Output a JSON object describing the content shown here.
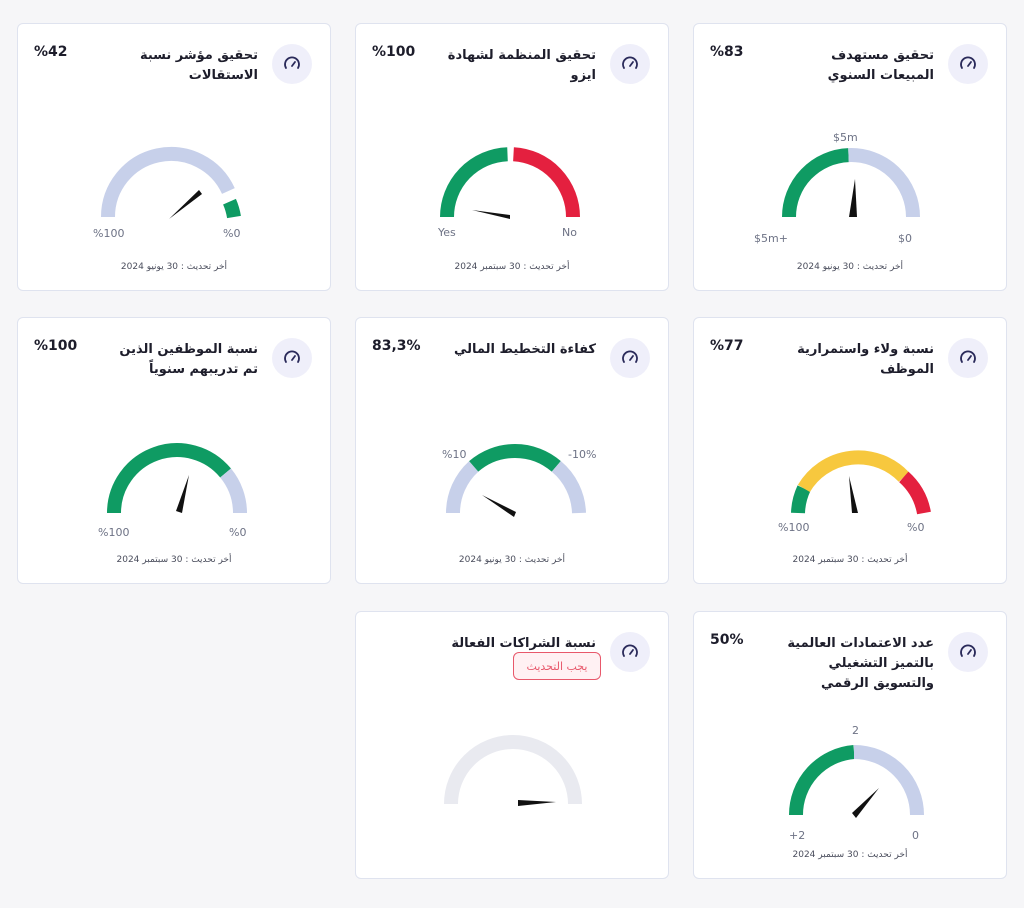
{
  "colors": {
    "green": "#0f9b63",
    "red": "#e4203f",
    "yellow": "#f7c83e",
    "lavender": "#c7d0ea",
    "disabled": "#e9eaf0",
    "needle": "#111111"
  },
  "icon": "speedometer-icon",
  "cards": [
    {
      "title": "تحقيق مستهدف المبيعات السنوي",
      "value": "%83",
      "labels": {
        "left": "$5m+",
        "right": "$0",
        "top": "$5m"
      },
      "updated": "أخر تحديث : 30 يونيو 2024",
      "gauge_fraction": 0.45
    },
    {
      "title": "تحقيق المنظمة لشهادة ايزو",
      "value": "%100",
      "labels": {
        "left": "Yes",
        "right": "No"
      },
      "updated": "أخر تحديث : 30 سبتمبر 2024",
      "gauge_fraction": 0.03
    },
    {
      "title": "تحقيق مؤشر نسبة الاستقالات",
      "value": "%42",
      "labels": {
        "left": "%100",
        "right": "%0"
      },
      "updated": "أخر تحديث : 30 يونيو 2024",
      "gauge_fraction": 0.7
    },
    {
      "title": "نسبة ولاء واستمرارية الموظف",
      "value": "%77",
      "labels": {
        "left": "%100",
        "right": "%0"
      },
      "updated": "أخر تحديث : 30 سبتمبر 2024",
      "gauge_fraction": 0.53
    },
    {
      "title": "كفاءة التخطيط المالي",
      "value": "83,3%",
      "labels": {
        "left": "%10",
        "right": "-10%"
      },
      "updated": "أخر تحديث : 30 يونيو 2024",
      "gauge_fraction": 0.17
    },
    {
      "title": "نسبة الموظفين الذين تم تدريبهم سنوياً",
      "value": "%100",
      "labels": {
        "left": "%100",
        "right": "%0"
      },
      "updated": "أخر تحديث : 30 سبتمبر 2024",
      "gauge_fraction": 0.56
    },
    {
      "title": "عدد الاعتمادات العالمية بالتميز التشغيلي والتسويق الرقمي",
      "value": "50%",
      "labels": {
        "left": "+2",
        "right": "0",
        "top": "2"
      },
      "updated": "أخر تحديث : 30 سبتمبر 2024",
      "gauge_fraction": 0.75
    },
    {
      "title": "نسبة الشراكات الفعالة",
      "badge": "يجب التحديث",
      "gauge_fraction": 0.98
    }
  ]
}
